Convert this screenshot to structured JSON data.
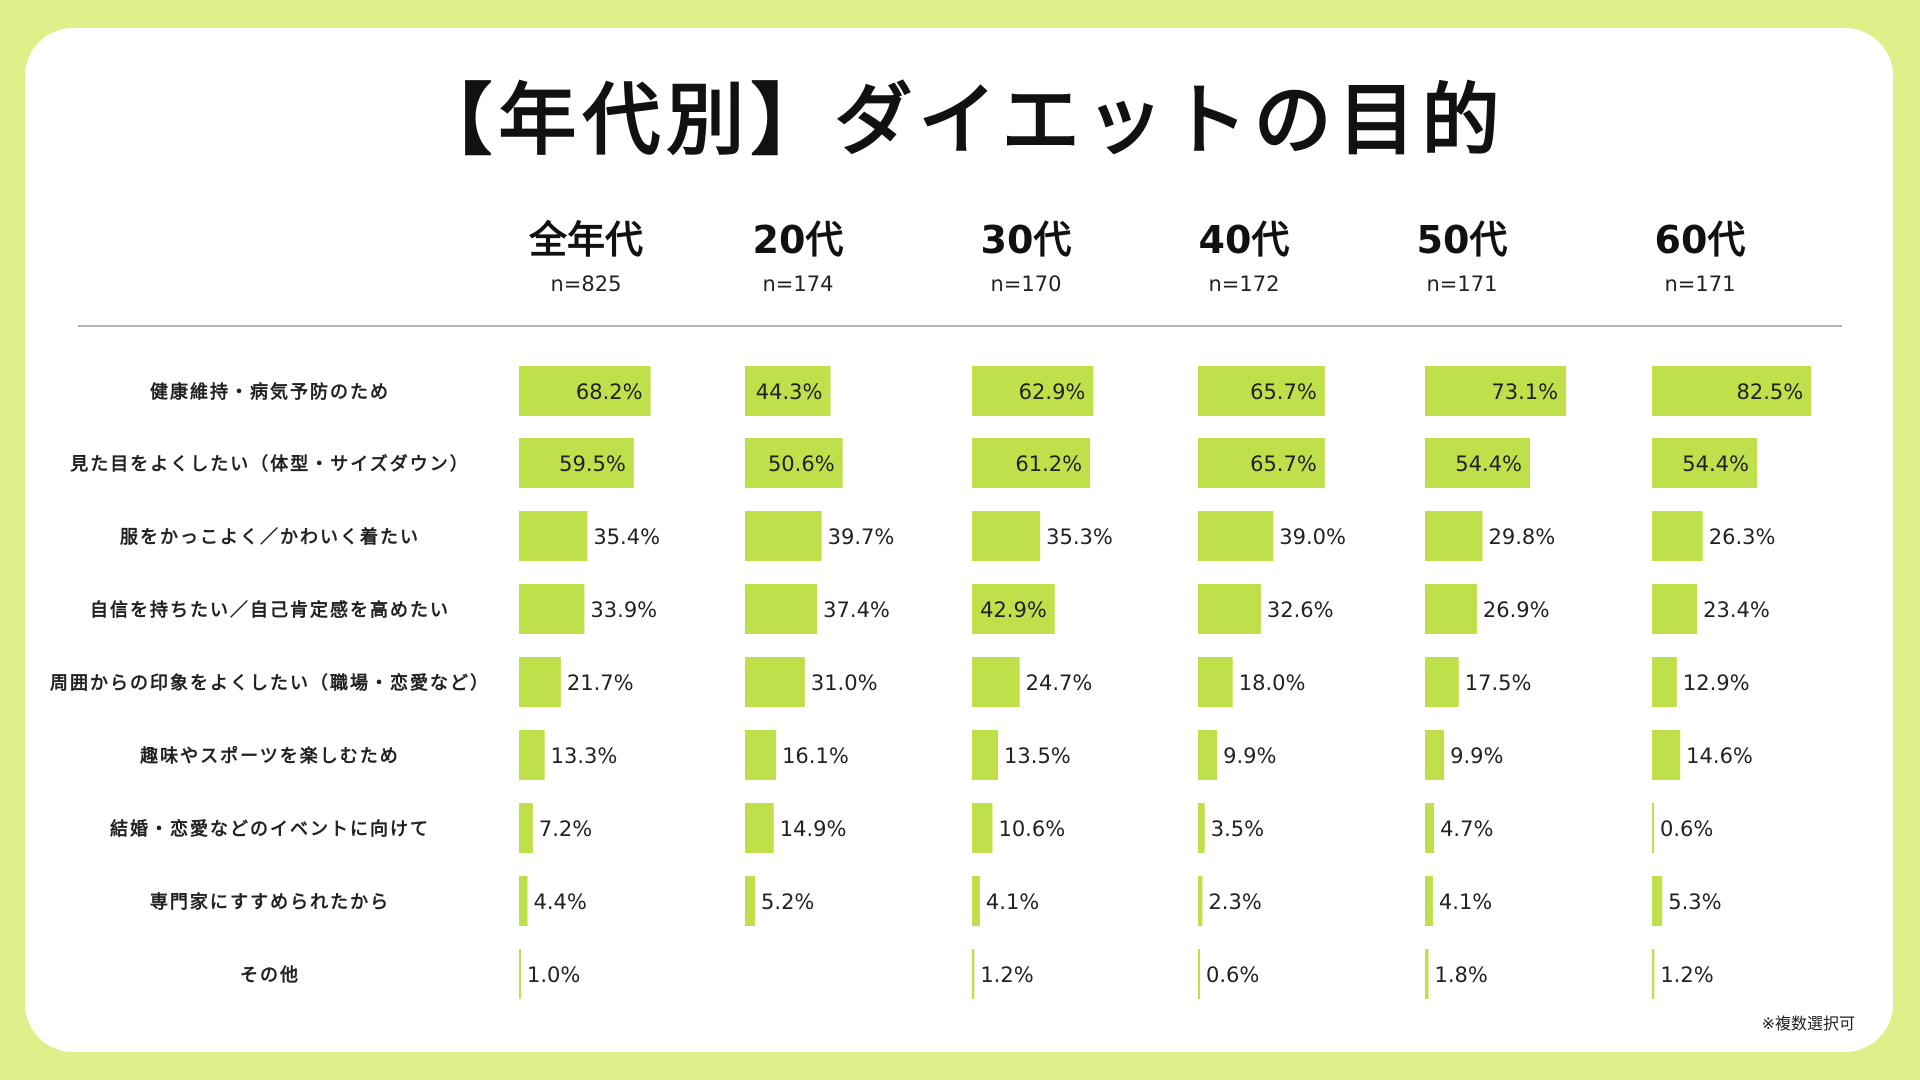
{
  "title": "【年代別】ダイエットの目的",
  "note": "※複数選択可",
  "colors": {
    "background": "#dff08a",
    "bar": "#bfe04b",
    "card": "#ffffff",
    "rule": "#b5b5b5"
  },
  "chart_data": {
    "type": "bar",
    "orientation": "horizontal",
    "title": "【年代別】ダイエットの目的",
    "unit": "%",
    "xlim": [
      0,
      100
    ],
    "categories": [
      "健康維持・病気予防のため",
      "見た目をよくしたい（体型・サイズダウン）",
      "服をかっこよく／かわいく着たい",
      "自信を持ちたい／自己肯定感を高めたい",
      "周囲からの印象をよくしたい（職場・恋愛など）",
      "趣味やスポーツを楽しむため",
      "結婚・恋愛などのイベントに向けて",
      "専門家にすすめられたから",
      "その他"
    ],
    "series": [
      {
        "name": "全年代",
        "n": "n=825",
        "values": [
          68.2,
          59.5,
          35.4,
          33.9,
          21.7,
          13.3,
          7.2,
          4.4,
          1.0
        ],
        "labels": [
          "68.2%",
          "59.5%",
          "35.4%",
          "33.9%",
          "21.7%",
          "13.3%",
          "7.2%",
          "4.4%",
          "1.0%"
        ]
      },
      {
        "name": "20代",
        "n": "n=174",
        "values": [
          44.3,
          50.6,
          39.7,
          37.4,
          31.0,
          16.1,
          14.9,
          5.2,
          null
        ],
        "labels": [
          "44.3%",
          "50.6%",
          "39.7%",
          "37.4%",
          "31.0%",
          "16.1%",
          "14.9%",
          "5.2%",
          null
        ]
      },
      {
        "name": "30代",
        "n": "n=170",
        "values": [
          62.9,
          61.2,
          35.3,
          42.9,
          24.7,
          13.5,
          10.6,
          4.1,
          1.2
        ],
        "labels": [
          "62.9%",
          "61.2%",
          "35.3%",
          "42.9%",
          "24.7%",
          "13.5%",
          "10.6%",
          "4.1%",
          "1.2%"
        ]
      },
      {
        "name": "40代",
        "n": "n=172",
        "values": [
          65.7,
          65.7,
          39.0,
          32.6,
          18.0,
          9.9,
          3.5,
          2.3,
          0.6
        ],
        "labels": [
          "65.7%",
          "65.7%",
          "39.0%",
          "32.6%",
          "18.0%",
          "9.9%",
          "3.5%",
          "2.3%",
          "0.6%"
        ]
      },
      {
        "name": "50代",
        "n": "n=171",
        "values": [
          73.1,
          54.4,
          29.8,
          26.9,
          17.5,
          9.9,
          4.7,
          4.1,
          1.8
        ],
        "labels": [
          "73.1%",
          "54.4%",
          "29.8%",
          "26.9%",
          "17.5%",
          "9.9%",
          "4.7%",
          "4.1%",
          "1.8%"
        ]
      },
      {
        "name": "60代",
        "n": "n=171",
        "values": [
          82.5,
          54.4,
          26.3,
          23.4,
          12.9,
          14.6,
          0.6,
          5.3,
          1.2
        ],
        "labels": [
          "82.5%",
          "54.4%",
          "26.3%",
          "23.4%",
          "12.9%",
          "14.6%",
          "0.6%",
          "5.3%",
          "1.2%"
        ]
      }
    ]
  }
}
